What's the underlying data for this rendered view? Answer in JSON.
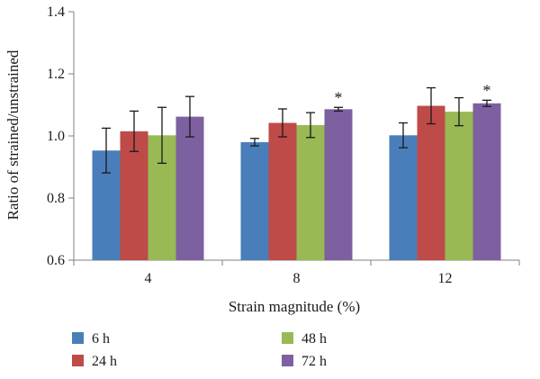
{
  "chart_data": {
    "type": "bar",
    "title": "",
    "xlabel": "Strain magnitude (%)",
    "ylabel": "Ratio of strained/unstrained",
    "categories": [
      "4",
      "8",
      "12"
    ],
    "ylim": [
      0.6,
      1.4
    ],
    "yticks": [
      "0.6",
      "0.8",
      "1.0",
      "1.2",
      "1.4"
    ],
    "grid": false,
    "legend_position": "bottom",
    "series": [
      {
        "name": "6 h",
        "color": "#4a7ebb",
        "values": [
          0.953,
          0.98,
          1.002
        ],
        "errors": [
          0.072,
          0.012,
          0.04
        ]
      },
      {
        "name": "24 h",
        "color": "#be4b48",
        "values": [
          1.015,
          1.042,
          1.097
        ],
        "errors": [
          0.065,
          0.045,
          0.058
        ]
      },
      {
        "name": "48 h",
        "color": "#98b954",
        "values": [
          1.002,
          1.035,
          1.078
        ],
        "errors": [
          0.09,
          0.04,
          0.045
        ]
      },
      {
        "name": "72 h",
        "color": "#7d60a0",
        "values": [
          1.062,
          1.086,
          1.105
        ],
        "errors": [
          0.065,
          0.006,
          0.01
        ]
      }
    ],
    "annotations": [
      {
        "category": "8",
        "series": "72 h",
        "text": "*"
      },
      {
        "category": "12",
        "series": "72 h",
        "text": "*"
      }
    ]
  }
}
